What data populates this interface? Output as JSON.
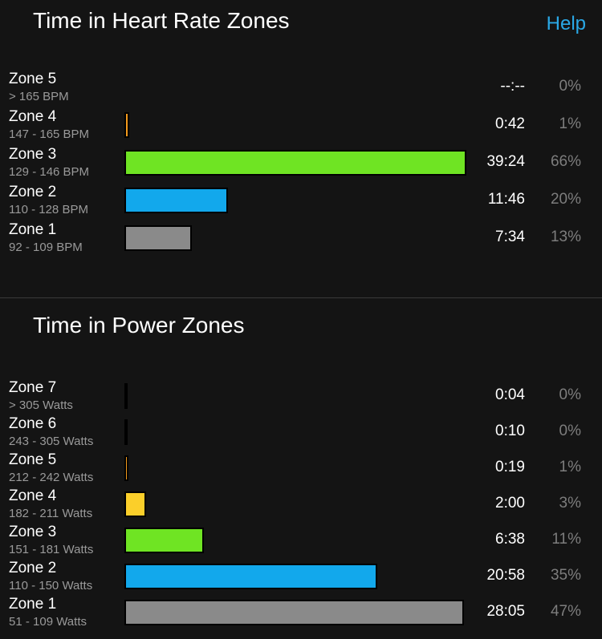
{
  "help_label": "Help",
  "colors": {
    "gray": "#8a8a8a",
    "blue": "#12a8ec",
    "green": "#6fe423",
    "yellow": "#fbcf2a",
    "orange": "#f49a1c",
    "black": "#111111",
    "accent": "#2aa8e6"
  },
  "chart_data": [
    {
      "type": "bar",
      "title": "Time in Heart Rate Zones",
      "orientation": "horizontal",
      "zones": [
        {
          "name": "Zone 5",
          "range": "> 165 BPM",
          "time": "--:--",
          "percent_label": "0%",
          "percent": 0,
          "color": "#111111"
        },
        {
          "name": "Zone 4",
          "range": "147 - 165 BPM",
          "time": "0:42",
          "percent_label": "1%",
          "percent": 1,
          "color": "#f49a1c"
        },
        {
          "name": "Zone 3",
          "range": "129 - 146 BPM",
          "time": "39:24",
          "percent_label": "66%",
          "percent": 66,
          "color": "#6fe423"
        },
        {
          "name": "Zone 2",
          "range": "110 - 128 BPM",
          "time": "11:46",
          "percent_label": "20%",
          "percent": 20,
          "color": "#12a8ec"
        },
        {
          "name": "Zone 1",
          "range": "92 - 109 BPM",
          "time": "7:34",
          "percent_label": "13%",
          "percent": 13,
          "color": "#8a8a8a"
        }
      ]
    },
    {
      "type": "bar",
      "title": "Time in Power Zones",
      "orientation": "horizontal",
      "zones": [
        {
          "name": "Zone 7",
          "range": "> 305 Watts",
          "time": "0:04",
          "percent_label": "0%",
          "percent": 0.1,
          "color": "#111111"
        },
        {
          "name": "Zone 6",
          "range": "243 - 305 Watts",
          "time": "0:10",
          "percent_label": "0%",
          "percent": 0.3,
          "color": "#111111"
        },
        {
          "name": "Zone 5",
          "range": "212 - 242 Watts",
          "time": "0:19",
          "percent_label": "1%",
          "percent": 0.5,
          "color": "#f49a1c"
        },
        {
          "name": "Zone 4",
          "range": "182 - 211 Watts",
          "time": "2:00",
          "percent_label": "3%",
          "percent": 3,
          "color": "#fbcf2a"
        },
        {
          "name": "Zone 3",
          "range": "151 - 181 Watts",
          "time": "6:38",
          "percent_label": "11%",
          "percent": 11,
          "color": "#6fe423"
        },
        {
          "name": "Zone 2",
          "range": "110 - 150 Watts",
          "time": "20:58",
          "percent_label": "35%",
          "percent": 35,
          "color": "#12a8ec"
        },
        {
          "name": "Zone 1",
          "range": "51 - 109 Watts",
          "time": "28:05",
          "percent_label": "47%",
          "percent": 47,
          "color": "#8a8a8a"
        }
      ]
    }
  ]
}
